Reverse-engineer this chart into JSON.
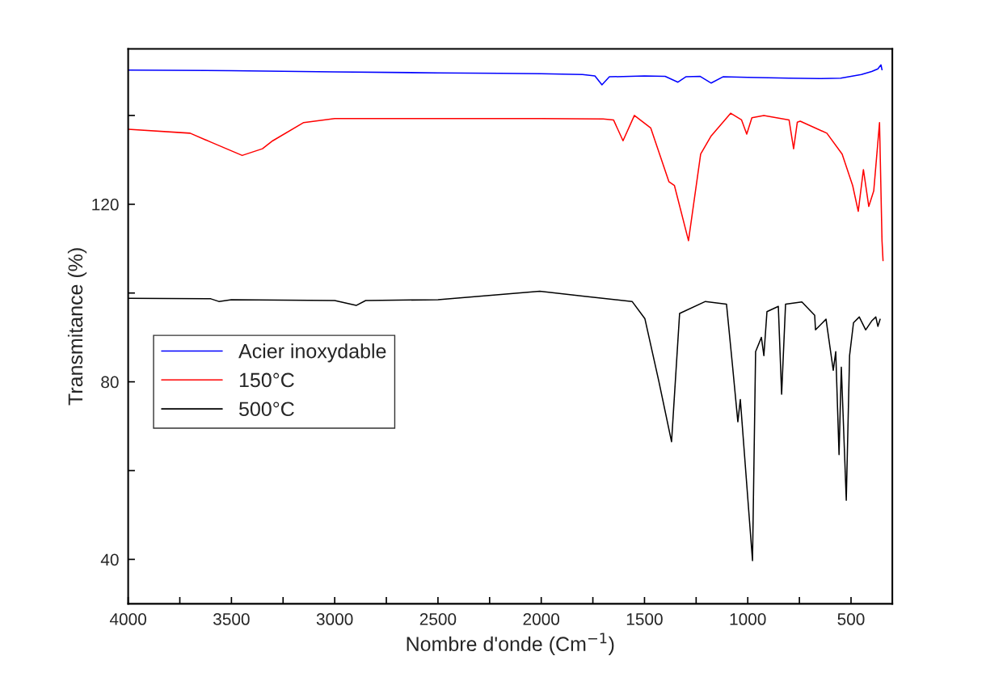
{
  "chart_data": {
    "type": "line",
    "xlabel": "Nombre d'onde (Cm$^{−1}$)",
    "ylabel": "Transmitance (%)",
    "xlim": [
      4000,
      300
    ],
    "ylim": [
      30,
      155
    ],
    "xticks": [
      4000,
      {
        "value": 3750,
        "label": null
      },
      3500,
      {
        "value": 3250,
        "label": null
      },
      3000,
      {
        "value": 2750,
        "label": null
      },
      2500,
      {
        "value": 2250,
        "label": null
      },
      2000,
      {
        "value": 1750,
        "label": null
      },
      1500,
      {
        "value": 1250,
        "label": null
      },
      1000,
      {
        "value": 750,
        "label": null
      },
      500
    ],
    "yticks": [
      40,
      {
        "value": 60,
        "label": null
      },
      80,
      {
        "value": 100,
        "label": null
      },
      120,
      {
        "value": 140,
        "label": null
      }
    ],
    "grid": false,
    "legend": "center left",
    "line_style": "solid",
    "marker": "none",
    "series": [
      {
        "name": "Acier inoxydable",
        "color": "#0000ff",
        "x": [
          4000,
          3500,
          3000,
          2500,
          2200,
          2000,
          1800,
          1740,
          1706,
          1670,
          1500,
          1400,
          1338,
          1300,
          1230,
          1177,
          1120,
          1000,
          800,
          650,
          550,
          450,
          400,
          370,
          355,
          350
        ],
        "values": [
          150.2,
          150.1,
          149.8,
          149.6,
          149.5,
          149.4,
          149.2,
          148.9,
          146.9,
          148.7,
          148.9,
          148.8,
          147.5,
          148.7,
          148.8,
          147.3,
          148.7,
          148.6,
          148.4,
          148.3,
          148.4,
          149.2,
          149.9,
          150.5,
          151.4,
          150.3
        ]
      },
      {
        "name": "150°C",
        "color": "#ff0000",
        "x": [
          4000,
          3700,
          3600,
          3448,
          3350,
          3300,
          3150,
          3000,
          2500,
          2000,
          1700,
          1650,
          1604,
          1549,
          1470,
          1382,
          1355,
          1287,
          1228,
          1177,
          1083,
          1030,
          1005,
          980,
          922,
          800,
          778,
          760,
          746,
          617,
          543,
          492,
          465,
          440,
          414,
          390,
          362,
          350,
          345
        ],
        "values": [
          136.9,
          136.0,
          134.0,
          131.0,
          132.5,
          134.3,
          138.4,
          139.3,
          139.3,
          139.3,
          139.2,
          139.0,
          134.3,
          140.0,
          137.2,
          125.1,
          124.2,
          111.8,
          131.3,
          135.4,
          140.5,
          139.0,
          135.8,
          139.5,
          140.0,
          139.0,
          132.5,
          138.5,
          138.7,
          136.0,
          131.3,
          124.2,
          118.4,
          127.8,
          119.5,
          123.0,
          138.4,
          111.8,
          107.3
        ]
      },
      {
        "name": "500°C",
        "color": "#000000",
        "x": [
          4000,
          3600,
          3561,
          3500,
          3000,
          2896,
          2850,
          2500,
          2007,
          1800,
          1560,
          1498,
          1430,
          1369,
          1330,
          1205,
          1103,
          1075,
          1048,
          1036,
          977,
          962,
          934,
          922,
          907,
          852,
          836,
          817,
          738,
          676,
          672,
          621,
          586,
          574,
          558,
          547,
          523,
          507,
          488,
          460,
          429,
          400,
          380,
          370,
          359
        ],
        "values": [
          98.8,
          98.7,
          98.1,
          98.5,
          98.3,
          97.2,
          98.3,
          98.5,
          100.4,
          99.3,
          98.1,
          94.2,
          80.0,
          66.5,
          95.4,
          98.1,
          97.5,
          84.2,
          71.0,
          76.0,
          39.7,
          86.8,
          90.0,
          85.9,
          95.8,
          97.0,
          77.2,
          97.5,
          98.0,
          95.0,
          91.7,
          94.1,
          82.6,
          86.8,
          63.6,
          83.3,
          53.3,
          85.9,
          93.3,
          94.6,
          91.7,
          93.7,
          94.6,
          92.5,
          94.1
        ]
      }
    ]
  }
}
